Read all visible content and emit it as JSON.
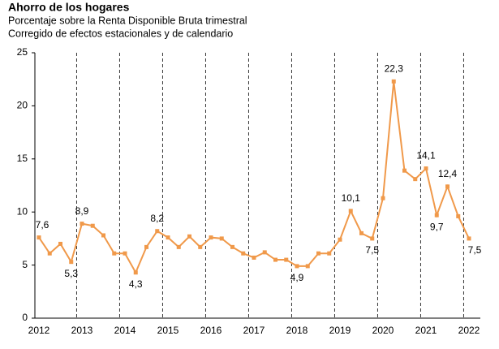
{
  "chart_data": {
    "type": "line",
    "title": "Ahorro de los hogares",
    "subtitle": "Porcentaje sobre la Renta Disponible Bruta trimestral",
    "note": "Corregido de efectos estacionales y de calendario",
    "categories": [
      "2012",
      null,
      null,
      null,
      "2013",
      null,
      null,
      null,
      "2014",
      null,
      null,
      null,
      "2015",
      null,
      null,
      null,
      "2016",
      null,
      null,
      null,
      "2017",
      null,
      null,
      null,
      "2018",
      null,
      null,
      null,
      "2019",
      null,
      null,
      null,
      "2020",
      null,
      null,
      null,
      "2021",
      null,
      null,
      null,
      "2022"
    ],
    "series": [
      {
        "color": "#f0994a",
        "values": [
          7.6,
          6.1,
          7.0,
          5.3,
          8.9,
          8.7,
          7.8,
          6.1,
          6.1,
          4.3,
          6.7,
          8.2,
          7.6,
          6.7,
          7.7,
          6.7,
          7.6,
          7.5,
          6.7,
          6.1,
          5.7,
          6.2,
          5.5,
          5.5,
          4.9,
          4.9,
          6.1,
          6.1,
          7.4,
          10.1,
          8.0,
          7.5,
          11.3,
          22.3,
          13.9,
          13.1,
          14.1,
          9.7,
          12.4,
          9.6,
          7.5
        ],
        "value_labels": [
          "7,6",
          null,
          null,
          "5,3",
          "8,9",
          null,
          null,
          null,
          null,
          "4,3",
          null,
          "8,2",
          null,
          null,
          null,
          null,
          null,
          null,
          null,
          null,
          null,
          null,
          null,
          null,
          "4,9",
          null,
          null,
          null,
          null,
          "10,1",
          null,
          "7,5",
          null,
          "22,3",
          null,
          null,
          "14,1",
          "9,7",
          "12,4",
          null,
          "7,5"
        ]
      }
    ],
    "ylim": [
      0,
      25
    ],
    "yticks": [
      0,
      5,
      10,
      15,
      20,
      25
    ],
    "grid": false
  }
}
